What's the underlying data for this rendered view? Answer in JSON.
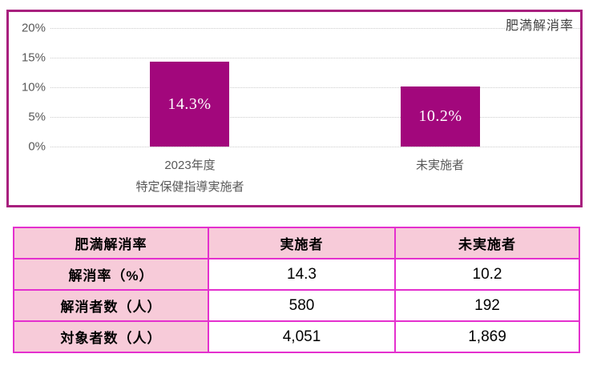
{
  "chart_data": {
    "type": "bar",
    "title": "肥満解消率",
    "categories": [
      "2023年度 特定保健指導実施者",
      "未実施者"
    ],
    "values": [
      14.3,
      10.2
    ],
    "bar_labels": [
      "14.3%",
      "10.2%"
    ],
    "yticks": [
      "20%",
      "15%",
      "10%",
      "5%",
      "0%"
    ],
    "ylim": [
      0,
      20
    ],
    "xlabel": "",
    "ylabel": "",
    "grid": "horizontal-dotted",
    "legend": "none",
    "bar_color": "#A2077C"
  },
  "chart": {
    "title": "肥満解消率",
    "x1_line1": "2023年度",
    "x1_line2": "特定保健指導実施者",
    "x2": "未実施者"
  },
  "table": {
    "headers": [
      "肥満解消率",
      "実施者",
      "未実施者"
    ],
    "rows": [
      {
        "label": "解消率（%）",
        "jisshisha": "14.3",
        "mijisshisha": "10.2"
      },
      {
        "label": "解消者数（人）",
        "jisshisha": "580",
        "mijisshisha": "192"
      },
      {
        "label": "対象者数（人）",
        "jisshisha": "4,051",
        "mijisshisha": "1,869"
      }
    ]
  },
  "colors": {
    "bar": "#A2077C",
    "chart_border": "#A8207E",
    "table_border": "#E430CE",
    "table_header_bg": "#F7CBD9",
    "axis_text": "#595959"
  }
}
